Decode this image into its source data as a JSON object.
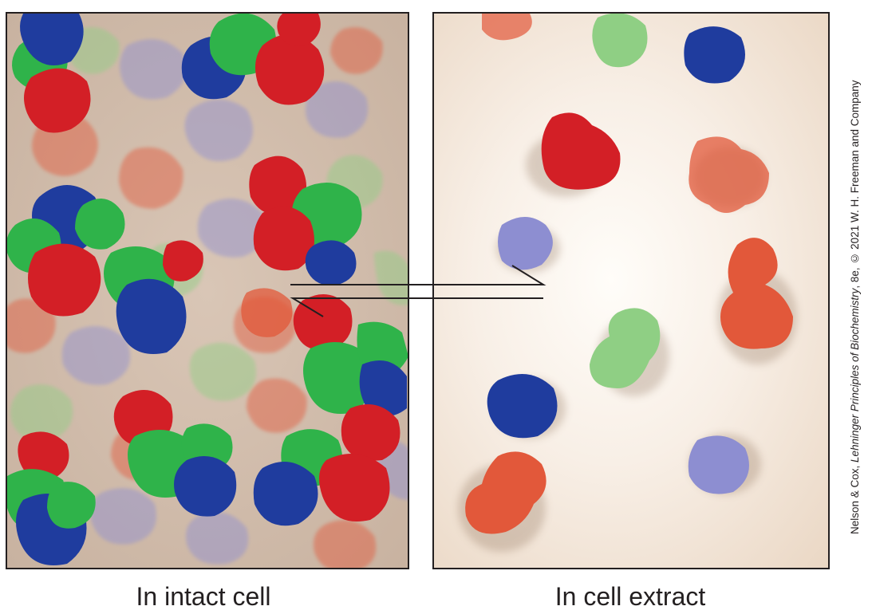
{
  "captions": {
    "intact": "In intact cell",
    "extract": "In cell extract"
  },
  "credit": {
    "before": "Nelson & Cox, ",
    "title": "Lehninger Principles of Biochemistry",
    "after": ", 8e, © 2021 W. H. Freeman and Company"
  },
  "colors": {
    "red": "#d31f26",
    "green": "#2fb34a",
    "blue": "#1f3c9e",
    "orange": "#e2583a",
    "light_green": "#8fcf84",
    "lavender": "#8d8ed1",
    "panel_border": "#231f20"
  }
}
